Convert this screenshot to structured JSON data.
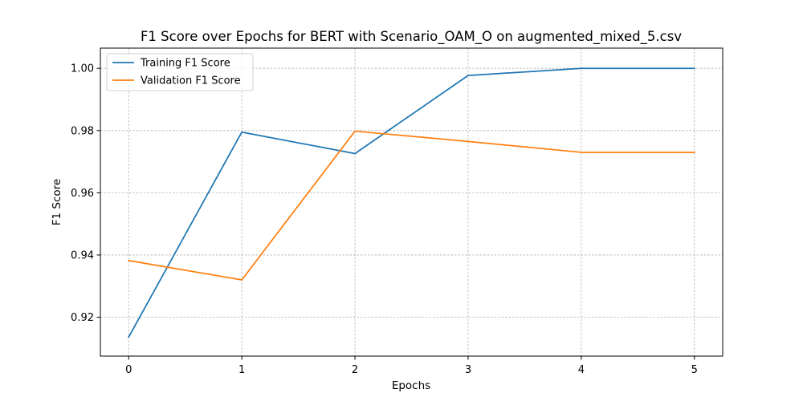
{
  "chart_data": {
    "type": "line",
    "title": "F1 Score over Epochs for BERT with Scenario_OAM_O on augmented_mixed_5.csv",
    "xlabel": "Epochs",
    "ylabel": "F1 Score",
    "x": [
      0,
      1,
      2,
      3,
      4,
      5
    ],
    "xlim": [
      -0.25,
      5.25
    ],
    "ylim": [
      0.9075,
      1.0065
    ],
    "xticks": [
      0,
      1,
      2,
      3,
      4,
      5
    ],
    "yticks": [
      0.92,
      0.94,
      0.96,
      0.98,
      1.0
    ],
    "ytick_labels": [
      "0.92",
      "0.94",
      "0.96",
      "0.98",
      "1.00"
    ],
    "grid": true,
    "legend_position": "top-left",
    "series": [
      {
        "name": "Training F1 Score",
        "color": "#1f77b4",
        "values": [
          0.9136,
          0.9795,
          0.9726,
          0.9977,
          1.0,
          1.0
        ]
      },
      {
        "name": "Validation F1 Score",
        "color": "#ff7f0e",
        "values": [
          0.9382,
          0.932,
          0.9798,
          0.9765,
          0.973,
          0.973
        ]
      }
    ]
  }
}
